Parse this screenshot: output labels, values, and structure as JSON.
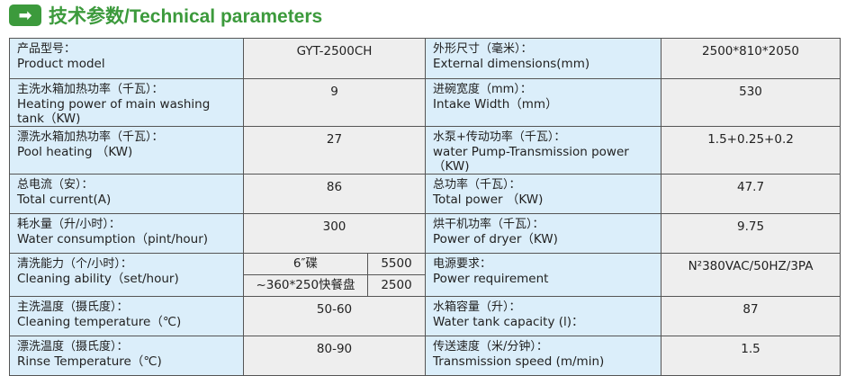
{
  "header": {
    "icon": "arrow-right-icon",
    "title": "技术参数/Technical parameters",
    "accent": "#3c9a3c"
  },
  "colors": {
    "label_bg": "#dbeefa",
    "value_bg": "#eeeeee"
  },
  "rows": [
    {
      "l1": "产品型号：",
      "l2": "Product model",
      "v1": "GYT-2500CH",
      "r1": "外形尺寸（毫米）：",
      "r2": "External dimensions(mm)",
      "v2": "2500*810*2050"
    },
    {
      "l1": "主洗水箱加热功率（千瓦）：",
      "l2": "Heating power of main washing tank（KW)",
      "v1": "9",
      "r1": "进碗宽度（mm）：",
      "r2": "Intake Width（mm）",
      "v2": "530"
    },
    {
      "l1": "漂洗水箱加热功率（千瓦）：",
      "l2": "Pool heating （KW)",
      "v1": "27",
      "r1": "水泵+传动功率（千瓦）：",
      "r2": "water Pump-Transmission power（KW)",
      "v2": "1.5+0.25+0.2"
    },
    {
      "l1": "总电流（安）：",
      "l2": "Total current(A)",
      "v1": "86",
      "r1": "总功率（千瓦）：",
      "r2": "Total power （KW)",
      "v2": "47.7"
    },
    {
      "l1": "耗水量（升/小时）：",
      "l2": "Water consumption（pint/hour)",
      "v1": "300",
      "r1": "烘干机功率（千瓦）：",
      "r2": "Power of dryer（KW)",
      "v2": "9.75"
    },
    {
      "l1": "清洗能力（个/小时）：",
      "l2": "Cleaning ability（set/hour)",
      "sub": [
        {
          "item": "6″碟",
          "qty": "5500"
        },
        {
          "item": "~360*250快餐盘",
          "qty": "2500"
        }
      ],
      "r1": "电源要求：",
      "r2": "Power requirement",
      "v2": "N²380VAC/50HZ/3PA"
    },
    {
      "l1": "主洗温度（摄氏度）：",
      "l2": "Cleaning temperature（℃)",
      "v1": "50-60",
      "r1": "水箱容量（升）：",
      "r2": "Water tank capacity (l)：",
      "v2": "87"
    },
    {
      "l1": "漂洗温度（摄氏度）：",
      "l2": "Rinse Temperature（℃)",
      "v1": "80-90",
      "r1": "传送速度（米/分钟）：",
      "r2": "Transmission speed (m/min)",
      "v2": "1.5"
    }
  ]
}
